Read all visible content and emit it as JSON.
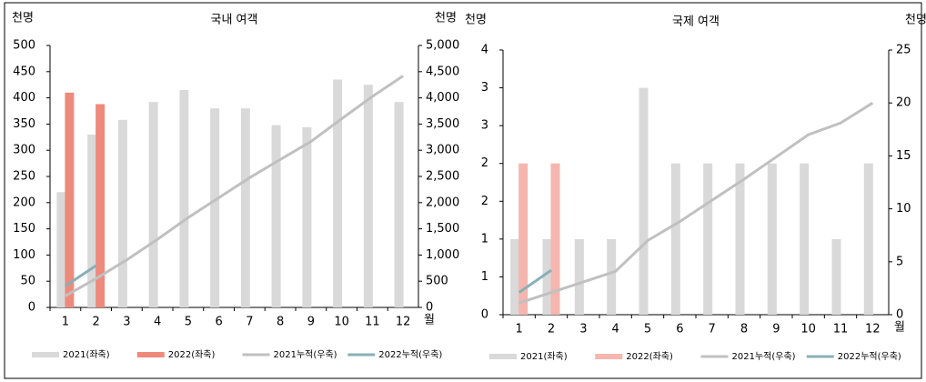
{
  "chart_data": [
    {
      "type": "combo",
      "title": "국내 여객",
      "y_label": "천명",
      "y2_label": "천명",
      "x_label": "월",
      "categories": [
        1,
        2,
        3,
        4,
        5,
        6,
        7,
        8,
        9,
        10,
        11,
        12
      ],
      "ylim": [
        0,
        500
      ],
      "yticks": [
        0,
        50,
        100,
        150,
        200,
        250,
        300,
        350,
        400,
        450,
        500
      ],
      "y2lim": [
        0,
        5000
      ],
      "y2ticks": [
        0,
        {
          "value": 500,
          "label": "500"
        },
        {
          "value": 1000,
          "label": "1,000"
        },
        {
          "value": 1500,
          "label": "1,500"
        },
        {
          "value": 2000,
          "label": "2,000"
        },
        {
          "value": 2500,
          "label": "2,500"
        },
        {
          "value": 3000,
          "label": "3,000"
        },
        {
          "value": 3500,
          "label": "3,500"
        },
        {
          "value": 4000,
          "label": "4,000"
        },
        {
          "value": 4500,
          "label": "4,500"
        },
        {
          "value": 5000,
          "label": "5,000"
        }
      ],
      "legend": "bottom",
      "series": [
        {
          "name": "2021(좌축)",
          "type": "bar",
          "color": "#d9d9d9",
          "values": [
            220,
            330,
            358,
            392,
            415,
            380,
            380,
            348,
            344,
            435,
            425,
            392
          ]
        },
        {
          "name": "2022(좌축)",
          "type": "bar",
          "color": "#ee8a7c",
          "values": [
            410,
            388,
            null,
            null,
            null,
            null,
            null,
            null,
            null,
            null,
            null,
            null
          ]
        },
        {
          "name": "2021누적(우축)",
          "type": "line",
          "axis": "y2",
          "color": "#c0c0c0",
          "values": [
            220,
            550,
            908,
            1300,
            1715,
            2095,
            2475,
            2823,
            3167,
            3602,
            4027,
            4419
          ]
        },
        {
          "name": "2022누적(우축)",
          "type": "line",
          "axis": "y2",
          "color": "#88b0b6",
          "values": [
            410,
            798,
            null,
            null,
            null,
            null,
            null,
            null,
            null,
            null,
            null,
            null
          ]
        }
      ]
    },
    {
      "type": "combo",
      "title": "국제 여객",
      "y_label": "천명",
      "y2_label": "천명",
      "x_label": "월",
      "categories": [
        1,
        2,
        3,
        4,
        5,
        6,
        7,
        8,
        9,
        10,
        11,
        12
      ],
      "ylim": [
        0,
        3.5
      ],
      "yticks": [
        0,
        {
          "value": 0.5,
          "label": "1"
        },
        1,
        {
          "value": 1.5,
          "label": "2"
        },
        2,
        {
          "value": 2.5,
          "label": "3"
        },
        3,
        {
          "value": 3.5,
          "label": "4"
        }
      ],
      "y2lim": [
        0,
        25
      ],
      "y2ticks": [
        0,
        5,
        10,
        15,
        20,
        25
      ],
      "legend": "bottom",
      "series": [
        {
          "name": "2021(좌축)",
          "type": "bar",
          "color": "#d9d9d9",
          "values": [
            1,
            1,
            1,
            1,
            3,
            2,
            2,
            2,
            2,
            2,
            1,
            2
          ]
        },
        {
          "name": "2022(좌축)",
          "type": "bar",
          "color": "#f4b6ae",
          "values": [
            2,
            2,
            null,
            null,
            null,
            null,
            null,
            null,
            null,
            null,
            null,
            null
          ]
        },
        {
          "name": "2021누적(우축)",
          "type": "line",
          "axis": "y2",
          "color": "#c0c0c0",
          "values": [
            1.1,
            2.1,
            3.1,
            4.1,
            7,
            8.8,
            10.8,
            12.8,
            14.9,
            17,
            18.1,
            20
          ]
        },
        {
          "name": "2022누적(우축)",
          "type": "line",
          "axis": "y2",
          "color": "#88b0b6",
          "values": [
            2.1,
            4.2,
            null,
            null,
            null,
            null,
            null,
            null,
            null,
            null,
            null,
            null
          ]
        }
      ]
    }
  ]
}
